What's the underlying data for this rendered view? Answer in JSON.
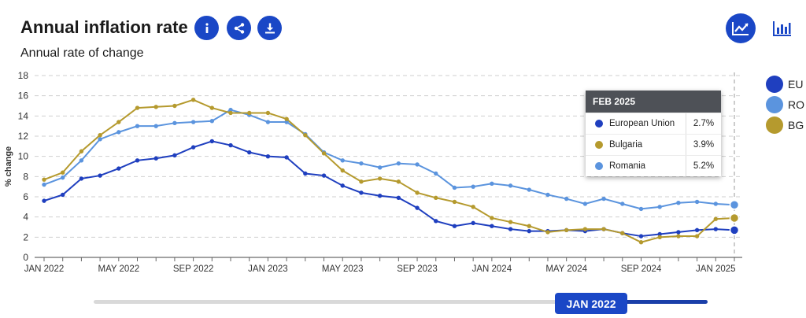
{
  "header": {
    "title": "Annual inflation rate",
    "subtitle": "Annual rate of change",
    "info_icon": "info-icon",
    "share_icon": "share-icon",
    "download_icon": "download-icon",
    "line_view_icon": "line-chart-icon",
    "bar_view_icon": "bar-chart-icon"
  },
  "colors": {
    "accent": "#1a47c6",
    "eu": "#1f3fbf",
    "ro": "#5b94de",
    "bg": "#b59a2e"
  },
  "legend": [
    {
      "label": "EU",
      "color": "#1f3fbf"
    },
    {
      "label": "RO",
      "color": "#5b94de"
    },
    {
      "label": "BG",
      "color": "#b59a2e"
    }
  ],
  "tooltip": {
    "title": "FEB 2025",
    "rows": [
      {
        "name": "European Union",
        "value": "2.7%",
        "color": "#1f3fbf"
      },
      {
        "name": "Bulgaria",
        "value": "3.9%",
        "color": "#b59a2e"
      },
      {
        "name": "Romania",
        "value": "5.2%",
        "color": "#5b94de"
      }
    ]
  },
  "slider": {
    "label": "JAN 2022"
  },
  "chart_data": {
    "type": "line",
    "ylabel": "% change",
    "ylim": [
      0,
      18
    ],
    "yticks": [
      0,
      2,
      4,
      6,
      8,
      10,
      12,
      14,
      16,
      18
    ],
    "grid": true,
    "legend_position": "right",
    "x": [
      "2022-01",
      "2022-02",
      "2022-03",
      "2022-04",
      "2022-05",
      "2022-06",
      "2022-07",
      "2022-08",
      "2022-09",
      "2022-10",
      "2022-11",
      "2022-12",
      "2023-01",
      "2023-02",
      "2023-03",
      "2023-04",
      "2023-05",
      "2023-06",
      "2023-07",
      "2023-08",
      "2023-09",
      "2023-10",
      "2023-11",
      "2023-12",
      "2024-01",
      "2024-02",
      "2024-03",
      "2024-04",
      "2024-05",
      "2024-06",
      "2024-07",
      "2024-08",
      "2024-09",
      "2024-10",
      "2024-11",
      "2024-12",
      "2025-01",
      "2025-02"
    ],
    "xtick_labels": [
      {
        "index": 0,
        "label": "JAN 2022"
      },
      {
        "index": 4,
        "label": "MAY 2022"
      },
      {
        "index": 8,
        "label": "SEP 2022"
      },
      {
        "index": 12,
        "label": "JAN 2023"
      },
      {
        "index": 16,
        "label": "MAY 2023"
      },
      {
        "index": 20,
        "label": "SEP 2023"
      },
      {
        "index": 24,
        "label": "JAN 2024"
      },
      {
        "index": 28,
        "label": "MAY 2024"
      },
      {
        "index": 32,
        "label": "SEP 2024"
      },
      {
        "index": 36,
        "label": "JAN 2025"
      }
    ],
    "highlight_index": 37,
    "series": [
      {
        "name": "EU",
        "color": "#1f3fbf",
        "values": [
          5.6,
          6.2,
          7.8,
          8.1,
          8.8,
          9.6,
          9.8,
          10.1,
          10.9,
          11.5,
          11.1,
          10.4,
          10.0,
          9.9,
          8.3,
          8.1,
          7.1,
          6.4,
          6.1,
          5.9,
          4.9,
          3.6,
          3.1,
          3.4,
          3.1,
          2.8,
          2.6,
          2.6,
          2.7,
          2.6,
          2.8,
          2.4,
          2.1,
          2.3,
          2.5,
          2.7,
          2.8,
          2.7
        ]
      },
      {
        "name": "RO",
        "color": "#5b94de",
        "values": [
          7.2,
          7.9,
          9.6,
          11.7,
          12.4,
          13.0,
          13.0,
          13.3,
          13.4,
          13.5,
          14.6,
          14.1,
          13.4,
          13.4,
          12.2,
          10.4,
          9.6,
          9.3,
          8.9,
          9.3,
          9.2,
          8.3,
          6.9,
          7.0,
          7.3,
          7.1,
          6.7,
          6.2,
          5.8,
          5.3,
          5.8,
          5.3,
          4.8,
          5.0,
          5.4,
          5.5,
          5.3,
          5.2
        ]
      },
      {
        "name": "BG",
        "color": "#b59a2e",
        "values": [
          7.7,
          8.4,
          10.5,
          12.1,
          13.4,
          14.8,
          14.9,
          15.0,
          15.6,
          14.8,
          14.3,
          14.3,
          14.3,
          13.7,
          12.1,
          10.3,
          8.6,
          7.5,
          7.8,
          7.5,
          6.4,
          5.9,
          5.5,
          5.0,
          3.9,
          3.5,
          3.1,
          2.5,
          2.7,
          2.8,
          2.8,
          2.4,
          1.5,
          2.0,
          2.1,
          2.1,
          3.8,
          3.9
        ]
      }
    ]
  }
}
